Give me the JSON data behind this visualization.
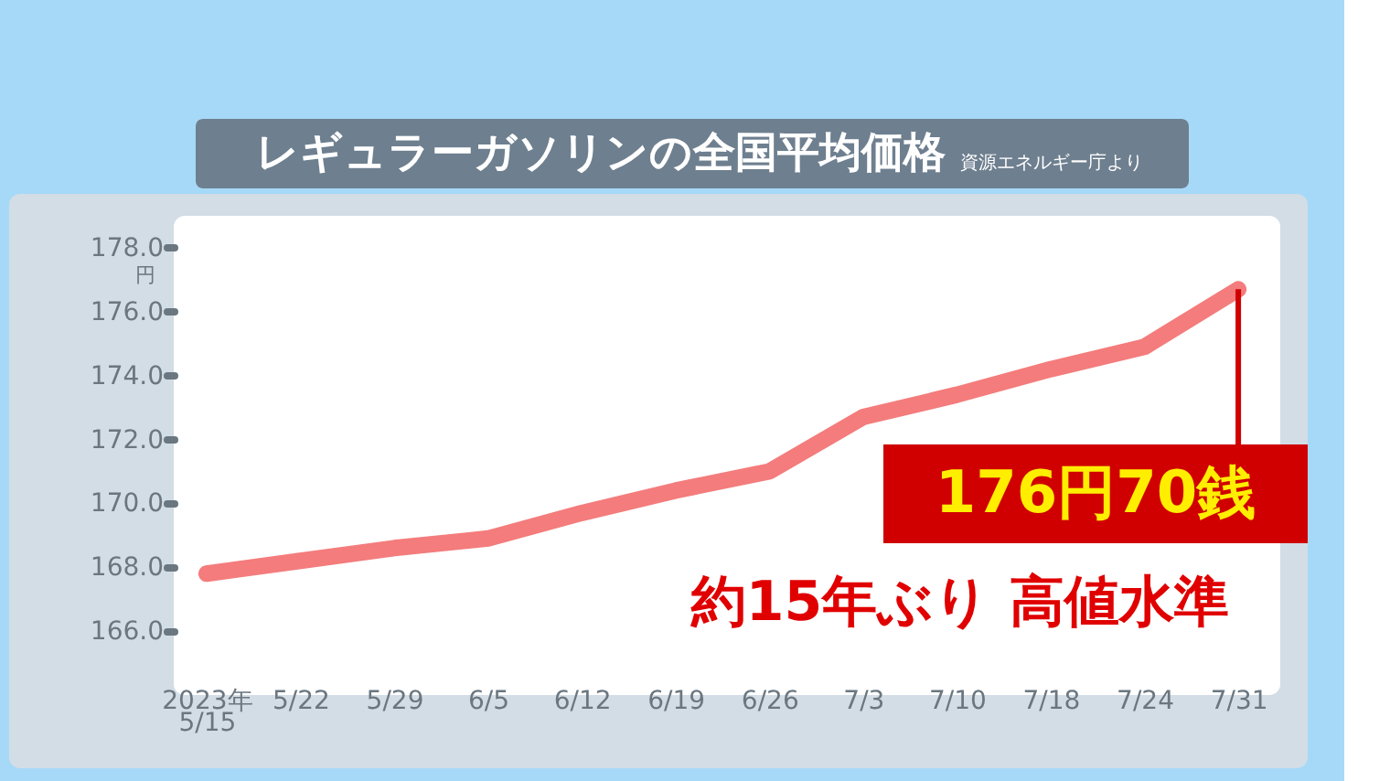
{
  "chart_data": {
    "type": "line",
    "title": "レギュラーガソリンの全国平均価格",
    "subtitle": "資源エネルギー庁より",
    "ylabel": "円",
    "categories": [
      "2023年\n5/15",
      "5/22",
      "5/29",
      "6/5",
      "6/12",
      "6/19",
      "6/26",
      "7/3",
      "7/10",
      "7/18",
      "7/24",
      "7/31"
    ],
    "series": [
      {
        "color": "#f47c7c",
        "values": [
          167.8,
          168.2,
          168.6,
          168.9,
          169.7,
          170.4,
          171.0,
          172.7,
          173.4,
          174.2,
          174.9,
          176.7
        ]
      }
    ],
    "ylim": [
      164,
      179
    ],
    "yticks": [
      {
        "value": 166,
        "label": "166.0"
      },
      {
        "value": 168,
        "label": "168.0"
      },
      {
        "value": 170,
        "label": "170.0"
      },
      {
        "value": 172,
        "label": "172.0"
      },
      {
        "value": 174,
        "label": "174.0"
      },
      {
        "value": 176,
        "label": "176.0"
      },
      {
        "value": 178,
        "label": "178.0"
      }
    ],
    "annotations": [
      {
        "text": "176円70銭",
        "x": "7/31",
        "y": 176.7
      },
      "約15年ぶり 高値水準"
    ]
  }
}
